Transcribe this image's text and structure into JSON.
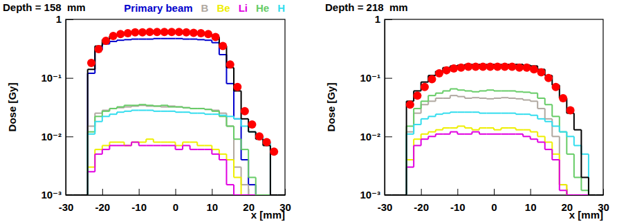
{
  "chart_data": [
    {
      "type": "histogram",
      "title": "Depth = 158  mm",
      "xlabel": "x [mm]",
      "ylabel": "Dose [Gy]",
      "log": "y",
      "legend": "top-right",
      "xlim": [
        -30,
        30
      ],
      "xticks": [
        -30,
        -20,
        -10,
        0,
        10,
        20,
        30
      ],
      "ylim": [
        0.001,
        1
      ],
      "yticks": [
        {
          "value": 0.001,
          "label": "10⁻³"
        },
        {
          "value": 0.01,
          "label": "10⁻²"
        },
        {
          "value": 0.1,
          "label": "10⁻¹"
        },
        1
      ],
      "bins": [
        -30,
        -28,
        -26,
        -24,
        -22,
        -20,
        -18,
        -16,
        -14,
        -12,
        -10,
        -8,
        -6,
        -4,
        -2,
        0,
        2,
        4,
        6,
        8,
        10,
        12,
        14,
        16,
        18,
        20,
        22,
        24,
        26,
        28,
        30
      ],
      "series": [
        {
          "name": "Primary beam",
          "color": "#0000cc",
          "type": "step",
          "values": [
            0.001,
            0.001,
            0.001,
            0.12,
            0.3,
            0.38,
            0.42,
            0.44,
            0.45,
            0.46,
            0.46,
            0.46,
            0.47,
            0.47,
            0.47,
            0.47,
            0.46,
            0.46,
            0.45,
            0.44,
            0.4,
            0.25,
            0.08,
            0.02,
            0.004,
            0.0015,
            0.001,
            0.001,
            0.001,
            0.001
          ]
        },
        {
          "name": "B",
          "color": "#b0a8a0",
          "type": "step",
          "values": [
            0.001,
            0.001,
            0.001,
            0.015,
            0.025,
            0.028,
            0.03,
            0.031,
            0.032,
            0.033,
            0.034,
            0.033,
            0.033,
            0.032,
            0.033,
            0.032,
            0.031,
            0.03,
            0.03,
            0.029,
            0.028,
            0.025,
            0.015,
            0.003,
            0.0015,
            0.001,
            0.001,
            0.001,
            0.001,
            0.001
          ]
        },
        {
          "name": "Be",
          "color": "#eeee00",
          "type": "step",
          "values": [
            0.001,
            0.001,
            0.001,
            0.003,
            0.006,
            0.007,
            0.008,
            0.008,
            0.007,
            0.008,
            0.008,
            0.009,
            0.008,
            0.008,
            0.008,
            0.007,
            0.008,
            0.008,
            0.007,
            0.007,
            0.006,
            0.005,
            0.004,
            0.002,
            0.001,
            0.001,
            0.001,
            0.001,
            0.001,
            0.001
          ]
        },
        {
          "name": "Li",
          "color": "#e000e0",
          "type": "step",
          "values": [
            0.001,
            0.001,
            0.001,
            0.0025,
            0.005,
            0.006,
            0.007,
            0.007,
            0.007,
            0.008,
            0.007,
            0.007,
            0.007,
            0.007,
            0.007,
            0.006,
            0.007,
            0.006,
            0.006,
            0.006,
            0.005,
            0.004,
            0.0015,
            0.001,
            0.001,
            0.001,
            0.001,
            0.001,
            0.001,
            0.001
          ]
        },
        {
          "name": "He",
          "color": "#66cc66",
          "type": "step",
          "values": [
            0.001,
            0.001,
            0.001,
            0.012,
            0.022,
            0.027,
            0.03,
            0.032,
            0.034,
            0.034,
            0.035,
            0.034,
            0.033,
            0.034,
            0.032,
            0.032,
            0.031,
            0.03,
            0.03,
            0.029,
            0.027,
            0.022,
            0.015,
            0.009,
            0.006,
            0.002,
            0.001,
            0.001,
            0.001,
            0.001
          ]
        },
        {
          "name": "H",
          "color": "#33ddee",
          "type": "step",
          "values": [
            0.001,
            0.001,
            0.001,
            0.011,
            0.018,
            0.022,
            0.024,
            0.026,
            0.027,
            0.028,
            0.028,
            0.028,
            0.027,
            0.027,
            0.027,
            0.026,
            0.026,
            0.025,
            0.025,
            0.024,
            0.024,
            0.023,
            0.022,
            0.02,
            0.015,
            0.012,
            0.01,
            0.008,
            0.001,
            0.001
          ]
        },
        {
          "color": "#000000",
          "type": "step",
          "values": [
            0.001,
            0.001,
            0.001,
            0.14,
            0.35,
            0.45,
            0.52,
            0.56,
            0.58,
            0.6,
            0.61,
            0.61,
            0.62,
            0.62,
            0.62,
            0.62,
            0.61,
            0.6,
            0.58,
            0.55,
            0.5,
            0.35,
            0.15,
            0.06,
            0.02,
            0.012,
            0.009,
            0.007,
            0.001,
            0.001
          ]
        },
        {
          "color": "#ff0000",
          "type": "scatter",
          "marker": "circle",
          "x": [
            -23,
            -21,
            -19,
            -17,
            -15,
            -13,
            -11,
            -9,
            -7,
            -5,
            -3,
            -1,
            1,
            3,
            5,
            7,
            9,
            11,
            13,
            15,
            17,
            19,
            21,
            23,
            25,
            27
          ],
          "values": [
            0.18,
            0.31,
            0.43,
            0.52,
            0.56,
            0.58,
            0.6,
            0.6,
            0.61,
            0.61,
            0.61,
            0.61,
            0.61,
            0.6,
            0.59,
            0.58,
            0.56,
            0.5,
            0.35,
            0.17,
            0.07,
            0.027,
            0.016,
            0.01,
            0.008,
            0.0055
          ]
        }
      ]
    },
    {
      "type": "histogram",
      "title": "Depth = 218  mm",
      "xlabel": "x [mm]",
      "ylabel": "Dose [Gy]",
      "log": "y",
      "xlim": [
        -30,
        30
      ],
      "xticks": [
        -30,
        -20,
        -10,
        0,
        10,
        20,
        30
      ],
      "ylim": [
        0.001,
        1
      ],
      "yticks": [
        {
          "value": 0.001,
          "label": "10⁻³"
        },
        {
          "value": 0.01,
          "label": "10⁻²"
        },
        {
          "value": 0.1,
          "label": "10⁻¹"
        },
        1
      ],
      "bins": [
        -30,
        -28,
        -26,
        -24,
        -22,
        -20,
        -18,
        -16,
        -14,
        -12,
        -10,
        -8,
        -6,
        -4,
        -2,
        0,
        2,
        4,
        6,
        8,
        10,
        12,
        14,
        16,
        18,
        20,
        22,
        24,
        26,
        28,
        30
      ],
      "series": [
        {
          "color": "#b0a8a0",
          "type": "step",
          "values": [
            0.001,
            0.001,
            0.001,
            0.012,
            0.025,
            0.035,
            0.04,
            0.045,
            0.045,
            0.05,
            0.048,
            0.045,
            0.046,
            0.045,
            0.044,
            0.045,
            0.046,
            0.045,
            0.044,
            0.042,
            0.04,
            0.03,
            0.02,
            0.01,
            0.0015,
            0.001,
            0.001,
            0.001,
            0.001,
            0.001
          ]
        },
        {
          "color": "#eeee00",
          "type": "step",
          "values": [
            0.001,
            0.001,
            0.001,
            0.004,
            0.009,
            0.011,
            0.012,
            0.013,
            0.014,
            0.014,
            0.015,
            0.014,
            0.013,
            0.014,
            0.014,
            0.013,
            0.014,
            0.014,
            0.013,
            0.013,
            0.012,
            0.01,
            0.008,
            0.005,
            0.0015,
            0.001,
            0.001,
            0.001,
            0.001,
            0.001
          ]
        },
        {
          "color": "#e000e0",
          "type": "step",
          "values": [
            0.001,
            0.001,
            0.001,
            0.003,
            0.007,
            0.009,
            0.01,
            0.011,
            0.011,
            0.012,
            0.011,
            0.011,
            0.012,
            0.011,
            0.011,
            0.011,
            0.011,
            0.011,
            0.011,
            0.01,
            0.009,
            0.008,
            0.006,
            0.004,
            0.0012,
            0.001,
            0.001,
            0.001,
            0.001,
            0.001
          ]
        },
        {
          "color": "#66cc66",
          "type": "step",
          "values": [
            0.001,
            0.001,
            0.001,
            0.015,
            0.03,
            0.04,
            0.05,
            0.055,
            0.06,
            0.065,
            0.062,
            0.06,
            0.058,
            0.06,
            0.062,
            0.06,
            0.06,
            0.06,
            0.058,
            0.057,
            0.055,
            0.045,
            0.035,
            0.022,
            0.012,
            0.005,
            0.002,
            0.0012,
            0.001,
            0.001
          ]
        },
        {
          "color": "#33ddee",
          "type": "step",
          "values": [
            0.001,
            0.001,
            0.001,
            0.011,
            0.016,
            0.02,
            0.022,
            0.024,
            0.025,
            0.026,
            0.026,
            0.026,
            0.026,
            0.025,
            0.025,
            0.025,
            0.025,
            0.025,
            0.024,
            0.024,
            0.023,
            0.02,
            0.018,
            0.015,
            0.012,
            0.01,
            0.007,
            0.005,
            0.001,
            0.001
          ]
        },
        {
          "color": "#000000",
          "type": "step",
          "values": [
            0.001,
            0.001,
            0.001,
            0.04,
            0.06,
            0.085,
            0.11,
            0.13,
            0.15,
            0.16,
            0.165,
            0.17,
            0.17,
            0.17,
            0.17,
            0.17,
            0.17,
            0.17,
            0.17,
            0.165,
            0.16,
            0.14,
            0.11,
            0.075,
            0.045,
            0.025,
            0.013,
            0.002,
            0.001,
            0.001
          ]
        },
        {
          "color": "#ff0000",
          "type": "scatter",
          "marker": "circle",
          "x": [
            -23,
            -21,
            -19,
            -17,
            -15,
            -13,
            -11,
            -9,
            -7,
            -5,
            -3,
            -1,
            1,
            3,
            5,
            7,
            9,
            11,
            13,
            15,
            17,
            19,
            21
          ],
          "values": [
            0.035,
            0.05,
            0.07,
            0.095,
            0.12,
            0.135,
            0.145,
            0.15,
            0.155,
            0.155,
            0.155,
            0.155,
            0.155,
            0.155,
            0.155,
            0.15,
            0.15,
            0.14,
            0.125,
            0.1,
            0.07,
            0.045,
            0.028
          ]
        }
      ]
    }
  ]
}
